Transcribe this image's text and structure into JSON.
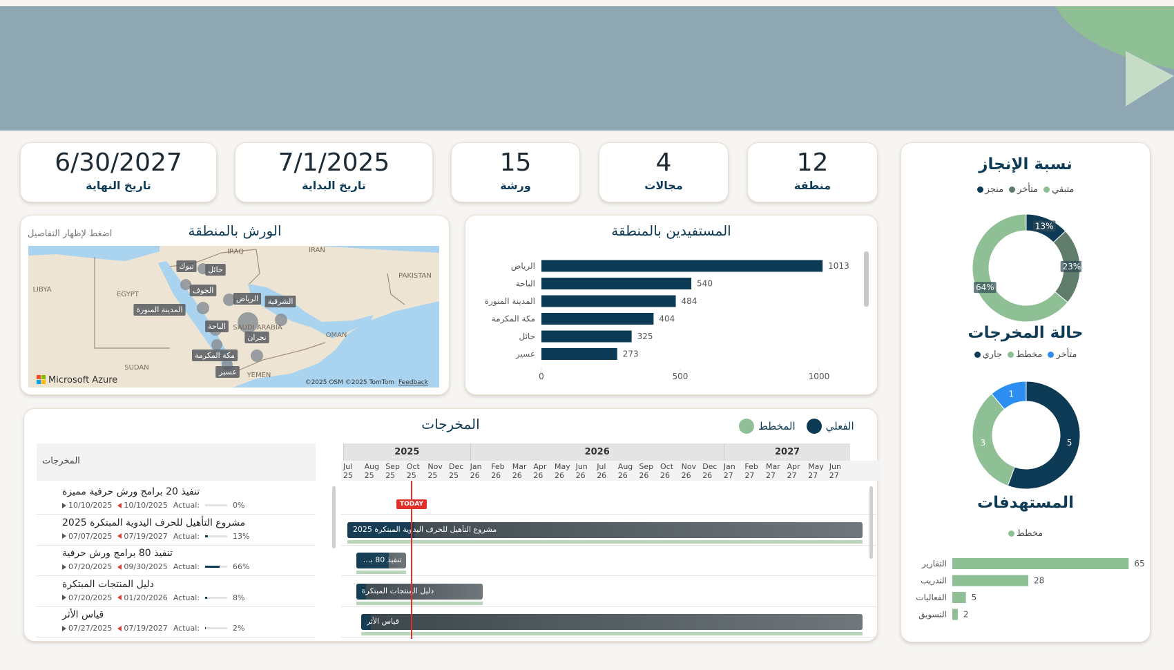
{
  "kpis": [
    {
      "value": "6/30/2027",
      "label": "تاريخ النهاية"
    },
    {
      "value": "7/1/2025",
      "label": "تاريخ البداية"
    },
    {
      "value": 15,
      "label": "ورشة"
    },
    {
      "value": 4,
      "label": "مجالات"
    },
    {
      "value": 12,
      "label": "منطقة"
    }
  ],
  "map": {
    "title": "الورش بالمنطقة",
    "hint": "اضغط لإظهار التفاصيل",
    "regions": [
      "تبوك",
      "حائل",
      "الجوف",
      "الرياض",
      "الشرقية",
      "المدينة المنورة",
      "الباحة",
      "نجران",
      "مكة المكرمة",
      "عسير"
    ],
    "countries": [
      "IRAQ",
      "IRAN",
      "LIBYA",
      "EGYPT",
      "PAKISTAN",
      "SAUDI ARABIA",
      "OMAN",
      "SUDAN",
      "YEMEN"
    ],
    "credits": {
      "brand": "Microsoft Azure",
      "copyright": "©2025 OSM  ©2025 TomTom",
      "feedback": "Feedback"
    }
  },
  "chart_data": [
    {
      "type": "bar",
      "orientation": "horizontal",
      "title": "المستفيدين بالمنطقة",
      "categories": [
        "الرياض",
        "الباحة",
        "المدينة المنورة",
        "مكة المكرمة",
        "حائل",
        "عسير"
      ],
      "values": [
        1013,
        540,
        484,
        404,
        325,
        273
      ],
      "color": "#0d3b56",
      "xlim": [
        0,
        1020
      ],
      "xticks": [
        0,
        500,
        1000
      ]
    },
    {
      "type": "donut",
      "title": "نسبة الإنجاز",
      "categories": [
        "متبقي",
        "متأخر",
        "منجز"
      ],
      "values": [
        64,
        23,
        13
      ],
      "value_labels": [
        "64%",
        "23%",
        "13%"
      ],
      "colors": [
        "#8fbf94",
        "#5f7d6a",
        "#0d3b56"
      ]
    },
    {
      "type": "donut",
      "title": "حالة المخرجات",
      "categories": [
        "متأخر",
        "مخطط",
        "جاري"
      ],
      "values": [
        1,
        3,
        5
      ],
      "colors": [
        "#2b8ef0",
        "#8fbf94",
        "#0d3b56"
      ]
    },
    {
      "type": "bar",
      "orientation": "horizontal",
      "title": "المستهدفات",
      "categories": [
        "التقارير",
        "التدريب",
        "الفعاليات",
        "التسويق"
      ],
      "series": [
        {
          "name": "مخطط",
          "color": "#8fbf94",
          "values": [
            65,
            28,
            5,
            2
          ]
        }
      ],
      "xlim": [
        0,
        70
      ]
    }
  ],
  "gantt": {
    "title": "المخرجات",
    "legend": [
      {
        "name": "المخطط",
        "color": "#8fbf94"
      },
      {
        "name": "الفعلي",
        "color": "#0d3b56"
      }
    ],
    "column_header": "المخرجات",
    "years": [
      2025,
      2026,
      2027
    ],
    "months": [
      {
        "month": "Jul",
        "year": "25"
      },
      {
        "month": "Aug",
        "year": "25"
      },
      {
        "month": "Sep",
        "year": "25"
      },
      {
        "month": "Oct",
        "year": "25"
      },
      {
        "month": "Nov",
        "year": "25"
      },
      {
        "month": "Dec",
        "year": "25"
      },
      {
        "month": "Jan",
        "year": "26"
      },
      {
        "month": "Feb",
        "year": "26"
      },
      {
        "month": "Mar",
        "year": "26"
      },
      {
        "month": "Apr",
        "year": "26"
      },
      {
        "month": "May",
        "year": "26"
      },
      {
        "month": "Jun",
        "year": "26"
      },
      {
        "month": "Jul",
        "year": "26"
      },
      {
        "month": "Aug",
        "year": "26"
      },
      {
        "month": "Sep",
        "year": "26"
      },
      {
        "month": "Oct",
        "year": "26"
      },
      {
        "month": "Nov",
        "year": "26"
      },
      {
        "month": "Dec",
        "year": "26"
      },
      {
        "month": "Jan",
        "year": "27"
      },
      {
        "month": "Feb",
        "year": "27"
      },
      {
        "month": "Mar",
        "year": "27"
      },
      {
        "month": "Apr",
        "year": "27"
      },
      {
        "month": "May",
        "year": "27"
      },
      {
        "month": "Jun",
        "year": "27"
      }
    ],
    "today": "TODAY",
    "actual_label": "Actual:",
    "tasks": [
      {
        "name": "تنفيذ 20 برامج ورش حرفية مميزة",
        "start": "10/10/2025",
        "end": "10/10/2025",
        "progress": 0,
        "progress_label": "0%"
      },
      {
        "name": "مشروع التأهيل للحرف اليدوية المبتكرة 2025",
        "start": "07/07/2025",
        "end": "07/19/2027",
        "progress": 13,
        "progress_label": "13%"
      },
      {
        "name": "تنفيذ 80 برامج ورش حرفية",
        "start": "07/20/2025",
        "end": "09/30/2025",
        "progress": 66,
        "progress_label": "66%"
      },
      {
        "name": "دليل المنتجات المبتكرة",
        "start": "07/20/2025",
        "end": "01/20/2026",
        "progress": 8,
        "progress_label": "8%"
      },
      {
        "name": "قياس الأثر",
        "start": "07/27/2025",
        "end": "07/19/2027",
        "progress": 2,
        "progress_label": "2%"
      }
    ]
  }
}
